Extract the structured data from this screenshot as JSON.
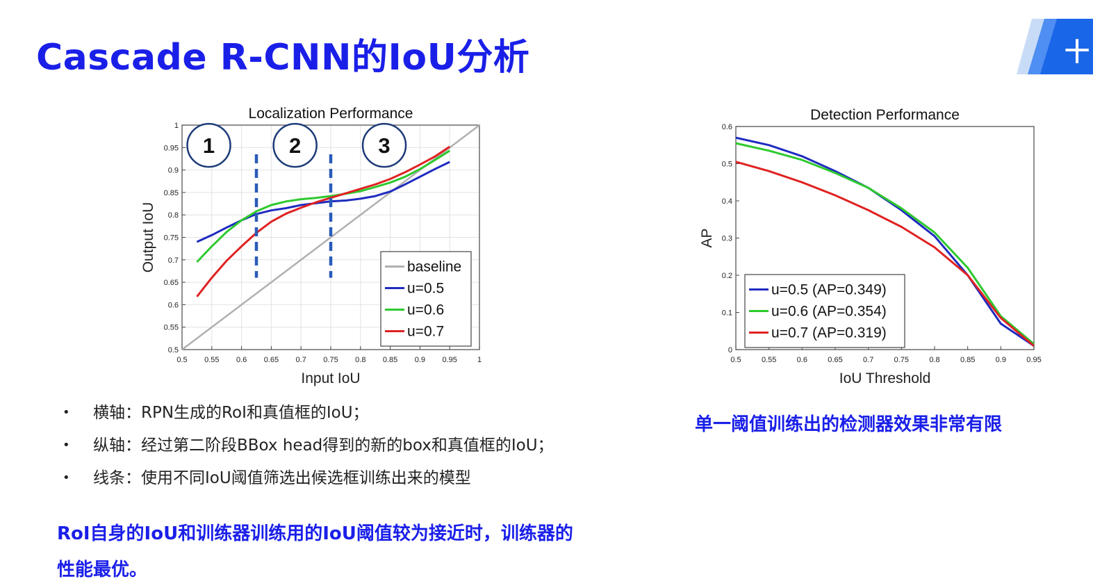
{
  "slide": {
    "title": "Cascade R-CNN的IoU分析",
    "logo_text": "十"
  },
  "colors": {
    "accent": "#1a1fe8",
    "blue": "#1f2bbf",
    "green": "#2ec92e",
    "red": "#e02222",
    "gray": "#b0b0b0"
  },
  "chart_data": [
    {
      "type": "line",
      "title": "Localization Performance",
      "xlabel": "Input IoU",
      "ylabel": "Output IoU",
      "xlim": [
        0.5,
        1
      ],
      "ylim": [
        0.5,
        1
      ],
      "xticks": [
        "0.5",
        "0.55",
        "0.6",
        "0.65",
        "0.7",
        "0.75",
        "0.8",
        "0.85",
        "0.9",
        "0.95",
        "1"
      ],
      "yticks": [
        "0.5",
        "0.55",
        "0.6",
        "0.65",
        "0.7",
        "0.75",
        "0.8",
        "0.85",
        "0.9",
        "0.95",
        "1"
      ],
      "legend_position": "bottom-right",
      "grid": true,
      "series": [
        {
          "name": "baseline",
          "color": "#b0b0b0",
          "x": [
            0.5,
            1.0
          ],
          "y": [
            0.5,
            1.0
          ]
        },
        {
          "name": "u=0.5",
          "color": "#1f2bbf",
          "x": [
            0.525,
            0.55,
            0.575,
            0.6,
            0.625,
            0.65,
            0.675,
            0.7,
            0.725,
            0.75,
            0.775,
            0.8,
            0.825,
            0.85,
            0.875,
            0.9,
            0.925,
            0.95
          ],
          "y": [
            0.74,
            0.755,
            0.772,
            0.788,
            0.802,
            0.81,
            0.815,
            0.822,
            0.826,
            0.83,
            0.832,
            0.836,
            0.842,
            0.852,
            0.868,
            0.885,
            0.902,
            0.918
          ]
        },
        {
          "name": "u=0.6",
          "color": "#2ec92e",
          "x": [
            0.525,
            0.55,
            0.575,
            0.6,
            0.625,
            0.65,
            0.675,
            0.7,
            0.725,
            0.75,
            0.775,
            0.8,
            0.825,
            0.85,
            0.875,
            0.9,
            0.925,
            0.95
          ],
          "y": [
            0.695,
            0.73,
            0.762,
            0.788,
            0.808,
            0.822,
            0.83,
            0.835,
            0.838,
            0.842,
            0.847,
            0.853,
            0.862,
            0.872,
            0.885,
            0.902,
            0.922,
            0.943
          ]
        },
        {
          "name": "u=0.7",
          "color": "#e02222",
          "x": [
            0.525,
            0.55,
            0.575,
            0.6,
            0.625,
            0.65,
            0.675,
            0.7,
            0.725,
            0.75,
            0.775,
            0.8,
            0.825,
            0.85,
            0.875,
            0.9,
            0.925,
            0.95
          ],
          "y": [
            0.618,
            0.66,
            0.698,
            0.73,
            0.76,
            0.785,
            0.803,
            0.816,
            0.828,
            0.838,
            0.848,
            0.858,
            0.868,
            0.88,
            0.895,
            0.912,
            0.93,
            0.952
          ]
        }
      ],
      "annotations": {
        "circles": [
          {
            "label": "1",
            "x": 0.545,
            "y": 0.955
          },
          {
            "label": "2",
            "x": 0.69,
            "y": 0.955
          },
          {
            "label": "3",
            "x": 0.84,
            "y": 0.955
          }
        ],
        "dashed_lines": [
          {
            "x": 0.625,
            "y_from": 0.66,
            "y_to": 0.935
          },
          {
            "x": 0.75,
            "y_from": 0.66,
            "y_to": 0.935
          }
        ]
      }
    },
    {
      "type": "line",
      "title": "Detection Performance",
      "xlabel": "IoU Threshold",
      "ylabel": "AP",
      "xlim": [
        0.5,
        0.95
      ],
      "ylim": [
        0,
        0.6
      ],
      "xticks": [
        "0.5",
        "0.55",
        "0.6",
        "0.65",
        "0.7",
        "0.75",
        "0.8",
        "0.85",
        "0.9",
        "0.95"
      ],
      "yticks": [
        "0",
        "0.1",
        "0.2",
        "0.3",
        "0.4",
        "0.5",
        "0.6"
      ],
      "legend_position": "bottom-left",
      "grid": false,
      "series": [
        {
          "name": "u=0.5 (AP=0.349)",
          "color": "#1f2bbf",
          "x": [
            0.5,
            0.55,
            0.6,
            0.65,
            0.7,
            0.75,
            0.8,
            0.85,
            0.9,
            0.95
          ],
          "y": [
            0.57,
            0.55,
            0.52,
            0.48,
            0.435,
            0.375,
            0.305,
            0.2,
            0.07,
            0.01
          ]
        },
        {
          "name": "u=0.6 (AP=0.354)",
          "color": "#2ec92e",
          "x": [
            0.5,
            0.55,
            0.6,
            0.65,
            0.7,
            0.75,
            0.8,
            0.85,
            0.9,
            0.95
          ],
          "y": [
            0.555,
            0.535,
            0.51,
            0.475,
            0.435,
            0.38,
            0.315,
            0.22,
            0.09,
            0.015
          ]
        },
        {
          "name": "u=0.7 (AP=0.319)",
          "color": "#e02222",
          "x": [
            0.5,
            0.55,
            0.6,
            0.65,
            0.7,
            0.75,
            0.8,
            0.85,
            0.9,
            0.95
          ],
          "y": [
            0.505,
            0.48,
            0.45,
            0.415,
            0.375,
            0.33,
            0.275,
            0.2,
            0.085,
            0.01
          ]
        }
      ]
    }
  ],
  "bullets": [
    "横轴：RPN生成的RoI和真值框的IoU；",
    "纵轴：经过第二阶段BBox head得到的新的box和真值框的IoU；",
    "线条：使用不同IoU阈值筛选出候选框训练出来的模型"
  ],
  "bullet_symbol": "•",
  "conclusion": "RoI自身的IoU和训练器训练用的IoU阈值较为接近时，训练器的性能最优。",
  "right_note": "单一阈值训练出的检测器效果非常有限"
}
